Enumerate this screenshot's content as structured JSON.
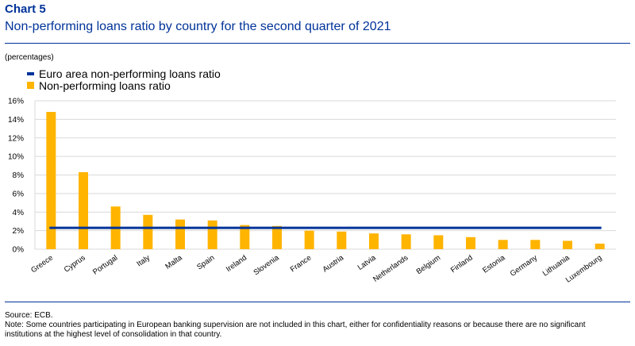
{
  "header": {
    "label": "Chart 5",
    "title": "Non-performing loans ratio by country for the second quarter of 2021"
  },
  "units": "(percentages)",
  "chart_data": {
    "type": "bar",
    "categories": [
      "Greece",
      "Cyprus",
      "Portugal",
      "Italy",
      "Malta",
      "Spain",
      "Ireland",
      "Slovenia",
      "France",
      "Austria",
      "Latvia",
      "Netherlands",
      "Belgium",
      "Finland",
      "Estonia",
      "Germany",
      "Lithuania",
      "Luxembourg"
    ],
    "series": [
      {
        "name": "Non-performing loans ratio",
        "type": "bar",
        "color": "#ffb400",
        "values": [
          14.8,
          8.3,
          4.6,
          3.7,
          3.2,
          3.1,
          2.6,
          2.5,
          2.0,
          1.9,
          1.7,
          1.6,
          1.5,
          1.3,
          1.0,
          1.0,
          0.9,
          0.6
        ]
      },
      {
        "name": "Euro area non-performing loans ratio",
        "type": "line",
        "color": "#003399",
        "value": 2.3
      }
    ],
    "yticks": [
      "0%",
      "2%",
      "4%",
      "6%",
      "8%",
      "10%",
      "12%",
      "14%",
      "16%"
    ],
    "ylim": [
      0,
      16
    ],
    "grid": true,
    "legend_position": "top-left"
  },
  "footer": {
    "source": "Source: ECB.",
    "note": "Note: Some countries participating in European banking supervision are not included in this chart, either for confidentiality reasons or because there are no significant institutions at the highest level of consolidation in that country."
  }
}
